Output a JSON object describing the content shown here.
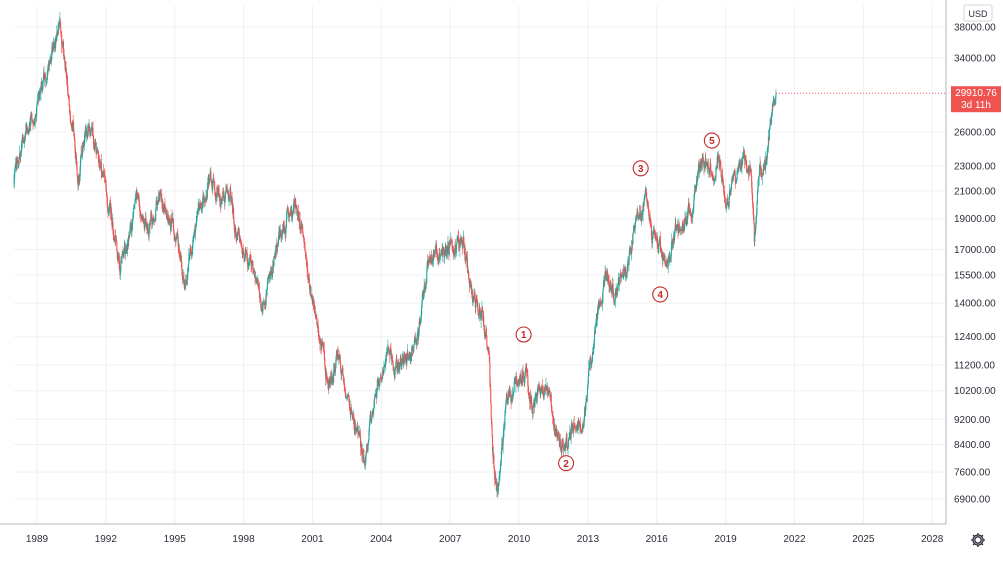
{
  "chart_data": {
    "type": "candlestick",
    "title": "",
    "xlabel": "",
    "ylabel": "",
    "currency": "USD",
    "y_scale": "log",
    "ylim": [
      6300,
      41000
    ],
    "xlim": [
      1988.0,
      2028.6
    ],
    "y_ticks": [
      {
        "value": 38000,
        "label": "38000.00"
      },
      {
        "value": 34000,
        "label": "34000.00"
      },
      {
        "value": 26000,
        "label": "26000.00"
      },
      {
        "value": 23000,
        "label": "23000.00"
      },
      {
        "value": 21000,
        "label": "21000.00"
      },
      {
        "value": 19000,
        "label": "19000.00"
      },
      {
        "value": 17000,
        "label": "17000.00"
      },
      {
        "value": 15500,
        "label": "15500.00"
      },
      {
        "value": 14000,
        "label": "14000.00"
      },
      {
        "value": 12400,
        "label": "12400.00"
      },
      {
        "value": 11200,
        "label": "11200.00"
      },
      {
        "value": 10200,
        "label": "10200.00"
      },
      {
        "value": 9200,
        "label": "9200.00"
      },
      {
        "value": 8400,
        "label": "8400.00"
      },
      {
        "value": 7600,
        "label": "7600.00"
      },
      {
        "value": 6900,
        "label": "6900.00"
      }
    ],
    "x_ticks": [
      {
        "value": 1989,
        "label": "1989"
      },
      {
        "value": 1992,
        "label": "1992"
      },
      {
        "value": 1995,
        "label": "1995"
      },
      {
        "value": 1998,
        "label": "1998"
      },
      {
        "value": 2001,
        "label": "2001"
      },
      {
        "value": 2004,
        "label": "2004"
      },
      {
        "value": 2007,
        "label": "2007"
      },
      {
        "value": 2010,
        "label": "2010"
      },
      {
        "value": 2013,
        "label": "2013"
      },
      {
        "value": 2016,
        "label": "2016"
      },
      {
        "value": 2019,
        "label": "2019"
      },
      {
        "value": 2022,
        "label": "2022"
      },
      {
        "value": 2025,
        "label": "2025"
      },
      {
        "value": 2028,
        "label": "2028"
      }
    ],
    "price_path": [
      [
        1988.0,
        21500
      ],
      [
        1988.3,
        24500
      ],
      [
        1988.6,
        26800
      ],
      [
        1989.0,
        28000
      ],
      [
        1989.3,
        31000
      ],
      [
        1989.6,
        34500
      ],
      [
        1990.0,
        38500
      ],
      [
        1990.3,
        31000
      ],
      [
        1990.6,
        26000
      ],
      [
        1990.8,
        22000
      ],
      [
        1991.1,
        26000
      ],
      [
        1991.4,
        25500
      ],
      [
        1991.8,
        23000
      ],
      [
        1992.2,
        19500
      ],
      [
        1992.6,
        16000
      ],
      [
        1992.9,
        17000
      ],
      [
        1993.4,
        20500
      ],
      [
        1993.8,
        18000
      ],
      [
        1994.3,
        20800
      ],
      [
        1994.7,
        19500
      ],
      [
        1995.1,
        17500
      ],
      [
        1995.5,
        15000
      ],
      [
        1995.9,
        18000
      ],
      [
        1996.5,
        22500
      ],
      [
        1996.9,
        21000
      ],
      [
        1997.4,
        20500
      ],
      [
        1997.8,
        17500
      ],
      [
        1998.3,
        16500
      ],
      [
        1998.8,
        13500
      ],
      [
        1999.2,
        15800
      ],
      [
        1999.6,
        18000
      ],
      [
        2000.1,
        19500
      ],
      [
        2000.3,
        20500
      ],
      [
        2000.8,
        15500
      ],
      [
        2001.2,
        13000
      ],
      [
        2001.7,
        10500
      ],
      [
        2002.1,
        11500
      ],
      [
        2002.5,
        10200
      ],
      [
        2003.0,
        8600
      ],
      [
        2003.3,
        7800
      ],
      [
        2003.7,
        10000
      ],
      [
        2004.2,
        11600
      ],
      [
        2004.7,
        11000
      ],
      [
        2005.2,
        11500
      ],
      [
        2005.6,
        12500
      ],
      [
        2006.0,
        16000
      ],
      [
        2006.4,
        16800
      ],
      [
        2006.8,
        16500
      ],
      [
        2007.3,
        17800
      ],
      [
        2007.6,
        17200
      ],
      [
        2008.0,
        14000
      ],
      [
        2008.4,
        13500
      ],
      [
        2008.7,
        11500
      ],
      [
        2008.85,
        8000
      ],
      [
        2009.05,
        7200
      ],
      [
        2009.4,
        9500
      ],
      [
        2009.8,
        10400
      ],
      [
        2010.3,
        11000
      ],
      [
        2010.6,
        9500
      ],
      [
        2011.0,
        10500
      ],
      [
        2011.3,
        9800
      ],
      [
        2011.8,
        8600
      ],
      [
        2012.1,
        8400
      ],
      [
        2012.4,
        9000
      ],
      [
        2012.8,
        8800
      ],
      [
        2013.0,
        10500
      ],
      [
        2013.4,
        13500
      ],
      [
        2013.8,
        15500
      ],
      [
        2014.2,
        14500
      ],
      [
        2014.7,
        16000
      ],
      [
        2015.1,
        19200
      ],
      [
        2015.5,
        20600
      ],
      [
        2015.8,
        17800
      ],
      [
        2016.1,
        17000
      ],
      [
        2016.5,
        16000
      ],
      [
        2016.8,
        17800
      ],
      [
        2017.2,
        19200
      ],
      [
        2017.6,
        20300
      ],
      [
        2018.0,
        23500
      ],
      [
        2018.4,
        22300
      ],
      [
        2018.7,
        24000
      ],
      [
        2019.0,
        20500
      ],
      [
        2019.4,
        21500
      ],
      [
        2019.8,
        23500
      ],
      [
        2020.1,
        23200
      ],
      [
        2020.25,
        17500
      ],
      [
        2020.5,
        22500
      ],
      [
        2020.8,
        23500
      ],
      [
        2021.0,
        27500
      ],
      [
        2021.2,
        29900
      ]
    ],
    "last_price": {
      "label": "29910.76",
      "countdown": "3d 11h",
      "value": 29910.76
    },
    "wave_labels": [
      {
        "label": "1",
        "x": 2010.2,
        "y": 12500
      },
      {
        "label": "2",
        "x": 2012.05,
        "y": 7850
      },
      {
        "label": "3",
        "x": 2015.3,
        "y": 22800
      },
      {
        "label": "4",
        "x": 2016.15,
        "y": 14450
      },
      {
        "label": "5",
        "x": 2018.4,
        "y": 25200
      }
    ],
    "colors": {
      "up": "#26a69a",
      "down": "#ef5350",
      "badge": "#ef5350",
      "wave": "#c62828"
    }
  },
  "toolbar": {
    "settings_icon": "gear-icon"
  }
}
